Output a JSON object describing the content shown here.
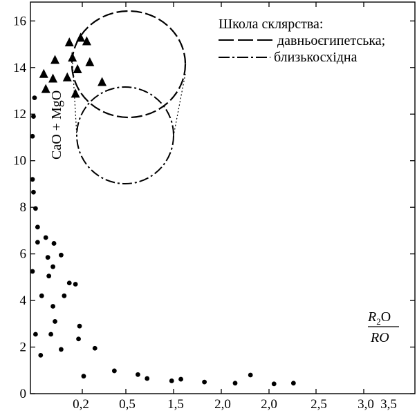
{
  "chart_data": {
    "type": "scatter",
    "xlabel": {
      "main": "R",
      "sub": "2",
      "rest": "O",
      "denominator": "RO"
    },
    "ylabel": "CaO + MgO",
    "ylim": [
      0,
      16.5
    ],
    "yticks": [
      0,
      2,
      4,
      6,
      8,
      10,
      12,
      14,
      16
    ],
    "y_tick_labels": [
      "0",
      "2",
      "4",
      "6",
      "8",
      "10",
      "12",
      "14",
      "16"
    ],
    "x_tick_labels": [
      "0,2",
      "0,5",
      "1,5",
      "2,0",
      "2,0",
      "2,5",
      "3,0",
      "3,5"
    ],
    "legend": {
      "title": "Школа склярства:",
      "entries": [
        {
          "label": "давньоєгипетська;",
          "style": "dashed"
        },
        {
          "label": "близькосхідна",
          "style": "dashdot"
        }
      ]
    },
    "series": [
      {
        "marker": "circle",
        "points": [
          [
            0.04,
            12.7
          ],
          [
            0.03,
            11.9
          ],
          [
            0.02,
            11.05
          ],
          [
            0.02,
            9.2
          ],
          [
            0.03,
            8.65
          ],
          [
            0.05,
            7.95
          ],
          [
            0.07,
            7.15
          ],
          [
            0.07,
            6.5
          ],
          [
            0.02,
            5.25
          ],
          [
            0.15,
            6.7
          ],
          [
            0.23,
            6.45
          ],
          [
            0.3,
            5.95
          ],
          [
            0.17,
            5.85
          ],
          [
            0.22,
            5.45
          ],
          [
            0.18,
            5.05
          ],
          [
            0.38,
            4.75
          ],
          [
            0.44,
            4.7
          ],
          [
            0.11,
            4.2
          ],
          [
            0.33,
            4.2
          ],
          [
            0.22,
            3.75
          ],
          [
            0.24,
            3.1
          ],
          [
            0.48,
            2.9
          ],
          [
            0.05,
            2.55
          ],
          [
            0.2,
            2.55
          ],
          [
            0.47,
            2.35
          ],
          [
            0.1,
            1.65
          ],
          [
            0.3,
            1.9
          ],
          [
            0.63,
            1.95
          ],
          [
            0.52,
            0.75
          ],
          [
            0.82,
            0.98
          ],
          [
            1.05,
            0.82
          ],
          [
            1.14,
            0.65
          ],
          [
            1.38,
            0.55
          ],
          [
            1.47,
            0.62
          ],
          [
            1.7,
            0.5
          ],
          [
            2.0,
            0.45
          ],
          [
            2.15,
            0.8
          ],
          [
            2.38,
            0.42
          ],
          [
            2.57,
            0.45
          ]
        ]
      },
      {
        "marker": "triangle",
        "points": [
          [
            0.13,
            13.75
          ],
          [
            0.15,
            13.1
          ],
          [
            0.24,
            14.35
          ],
          [
            0.22,
            13.55
          ],
          [
            0.36,
            13.6
          ],
          [
            0.38,
            15.1
          ],
          [
            0.41,
            14.45
          ],
          [
            0.46,
            13.95
          ],
          [
            0.49,
            15.3
          ],
          [
            0.55,
            15.15
          ],
          [
            0.58,
            14.25
          ],
          [
            0.7,
            13.4
          ],
          [
            0.44,
            12.9
          ]
        ]
      }
    ]
  }
}
